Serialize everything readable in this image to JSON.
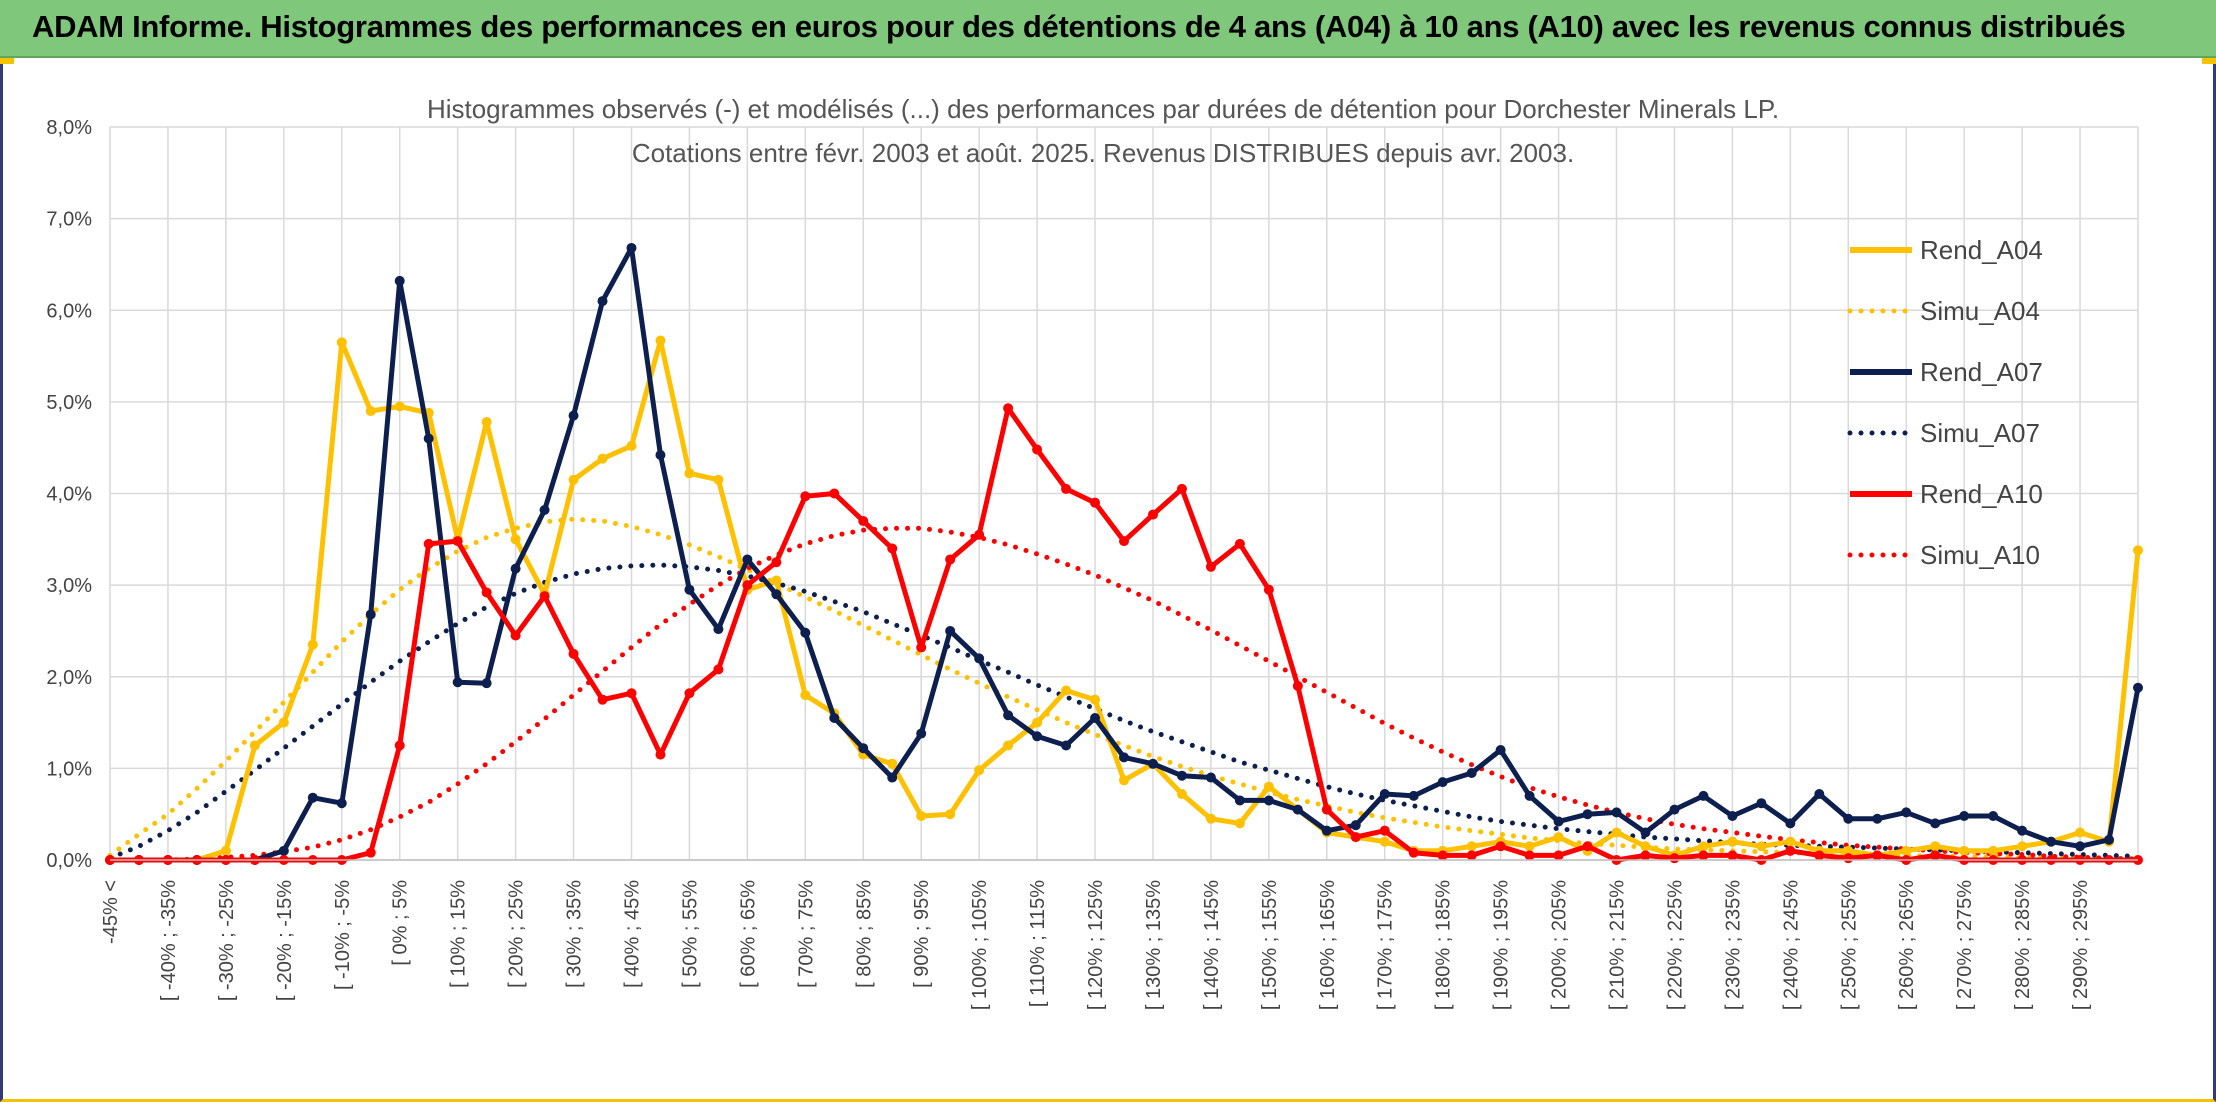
{
  "header": {
    "title": "ADAM Informe. Histogrammes des performances en euros pour des détentions de 4 ans (A04) à 10 ans (A10) avec les revenus connus distribués"
  },
  "chart_data": {
    "type": "line",
    "title": "Histogrammes observés (-) et modélisés (...) des performances par durées de détention pour Dorchester Minerals LP.",
    "subtitle": "Cotations entre févr. 2003 et août. 2025. Revenus DISTRIBUES depuis avr. 2003.",
    "xlabel": "",
    "ylabel": "",
    "ylim": [
      0,
      8
    ],
    "y_ticks": [
      "0,0%",
      "1,0%",
      "2,0%",
      "3,0%",
      "4,0%",
      "5,0%",
      "6,0%",
      "7,0%",
      "8,0%"
    ],
    "grid": true,
    "legend_position": "right",
    "x_tick_labels": [
      "-45% <",
      "[ -40% ; -35%",
      "[ -30% ; -25%",
      "[ -20% ; -15%",
      "[ -10% ; -5%",
      "[ 0% ; 5%",
      "[ 10% ; 15%",
      "[ 20% ; 25%",
      "[ 30% ; 35%",
      "[ 40% ; 45%",
      "[ 50% ; 55%",
      "[ 60% ; 65%",
      "[ 70% ; 75%",
      "[ 80% ; 85%",
      "[ 90% ; 95%",
      "[ 100% ; 105%",
      "[ 110% ; 115%",
      "[ 120% ; 125%",
      "[ 130% ; 135%",
      "[ 140% ; 145%",
      "[ 150% ; 155%",
      "[ 160% ; 165%",
      "[ 170% ; 175%",
      "[ 180% ; 185%",
      "[ 190% ; 195%",
      "[ 200% ; 205%",
      "[ 210% ; 215%",
      "[ 220% ; 225%",
      "[ 230% ; 235%",
      "[ 240% ; 245%",
      "[ 250% ; 255%",
      "[ 260% ; 265%",
      "[ 270% ; 275%",
      "[ 280% ; 285%",
      "[ 290% ; 295%"
    ],
    "series": [
      {
        "name": "Rend_A04",
        "style": "solid",
        "color": "#ffc000",
        "values": [
          0,
          0,
          0,
          0,
          0.1,
          1.25,
          1.5,
          2.35,
          5.65,
          4.9,
          4.95,
          4.88,
          3.5,
          4.78,
          3.5,
          2.9,
          4.15,
          4.38,
          4.52,
          5.67,
          4.22,
          4.15,
          2.95,
          3.05,
          1.8,
          1.6,
          1.15,
          1.05,
          0.48,
          0.5,
          0.98,
          1.25,
          1.5,
          1.85,
          1.75,
          0.87,
          1.05,
          0.72,
          0.45,
          0.4,
          0.8,
          0.55,
          0.3,
          0.25,
          0.2,
          0.1,
          0.1,
          0.15,
          0.2,
          0.15,
          0.25,
          0.1,
          0.3,
          0.15,
          0.05,
          0.15,
          0.2,
          0.15,
          0.2,
          0.1,
          0.1,
          0.05,
          0.1,
          0.15,
          0.1,
          0.1,
          0.15,
          0.2,
          0.3,
          0.2,
          3.38
        ]
      },
      {
        "name": "Simu_A04",
        "style": "dotted",
        "color": "#ffc000",
        "values": [
          0.05,
          0.28,
          0.5,
          0.78,
          1.08,
          1.4,
          1.72,
          2.05,
          2.38,
          2.68,
          2.95,
          3.18,
          3.37,
          3.52,
          3.62,
          3.69,
          3.72,
          3.7,
          3.64,
          3.55,
          3.44,
          3.31,
          3.17,
          3.02,
          2.87,
          2.72,
          2.56,
          2.4,
          2.24,
          2.08,
          1.93,
          1.78,
          1.64,
          1.5,
          1.37,
          1.25,
          1.13,
          1.02,
          0.92,
          0.83,
          0.74,
          0.66,
          0.59,
          0.52,
          0.46,
          0.41,
          0.36,
          0.32,
          0.28,
          0.24,
          0.21,
          0.18,
          0.16,
          0.14,
          0.12,
          0.11,
          0.1,
          0.09,
          0.08,
          0.07,
          0.06,
          0.05,
          0.05,
          0.04,
          0.04,
          0.03,
          0.03,
          0.03,
          0.03,
          0.02,
          0.02
        ]
      },
      {
        "name": "Rend_A07",
        "style": "solid",
        "color": "#0d1f4e",
        "values": [
          0,
          0,
          0,
          0,
          0,
          0,
          0.1,
          0.68,
          0.62,
          2.68,
          6.32,
          4.6,
          1.94,
          1.93,
          3.18,
          3.82,
          4.85,
          6.1,
          6.68,
          4.42,
          2.95,
          2.52,
          3.28,
          2.9,
          2.48,
          1.55,
          1.22,
          0.9,
          1.38,
          2.5,
          2.2,
          1.58,
          1.35,
          1.25,
          1.55,
          1.12,
          1.05,
          0.92,
          0.9,
          0.65,
          0.65,
          0.55,
          0.32,
          0.38,
          0.72,
          0.7,
          0.85,
          0.95,
          1.2,
          0.7,
          0.42,
          0.5,
          0.52,
          0.3,
          0.55,
          0.7,
          0.48,
          0.62,
          0.4,
          0.72,
          0.45,
          0.45,
          0.52,
          0.4,
          0.48,
          0.48,
          0.32,
          0.2,
          0.15,
          0.22,
          1.88
        ]
      },
      {
        "name": "Simu_A07",
        "style": "dotted",
        "color": "#0d1f4e",
        "values": [
          0.02,
          0.15,
          0.32,
          0.52,
          0.75,
          0.98,
          1.22,
          1.46,
          1.7,
          1.94,
          2.17,
          2.38,
          2.58,
          2.76,
          2.91,
          3.03,
          3.12,
          3.18,
          3.21,
          3.22,
          3.2,
          3.16,
          3.1,
          3.02,
          2.93,
          2.82,
          2.71,
          2.58,
          2.45,
          2.32,
          2.18,
          2.05,
          1.91,
          1.78,
          1.65,
          1.52,
          1.4,
          1.29,
          1.18,
          1.07,
          0.98,
          0.89,
          0.8,
          0.72,
          0.65,
          0.59,
          0.53,
          0.47,
          0.42,
          0.38,
          0.34,
          0.31,
          0.28,
          0.25,
          0.23,
          0.21,
          0.19,
          0.17,
          0.16,
          0.15,
          0.14,
          0.13,
          0.12,
          0.11,
          0.1,
          0.09,
          0.08,
          0.07,
          0.06,
          0.05,
          0.04
        ]
      },
      {
        "name": "Rend_A10",
        "style": "solid",
        "color": "#ff0000",
        "values": [
          0,
          0,
          0,
          0,
          0,
          0,
          0,
          0,
          0,
          0.08,
          1.25,
          3.45,
          3.48,
          2.92,
          2.45,
          2.88,
          2.25,
          1.75,
          1.82,
          1.15,
          1.82,
          2.08,
          3.0,
          3.25,
          3.97,
          4.0,
          3.7,
          3.4,
          2.32,
          3.28,
          3.55,
          4.93,
          4.48,
          4.05,
          3.9,
          3.48,
          3.77,
          4.05,
          3.2,
          3.45,
          2.95,
          1.9,
          0.55,
          0.25,
          0.32,
          0.08,
          0.05,
          0.05,
          0.15,
          0.05,
          0.05,
          0.15,
          0.0,
          0.05,
          0.02,
          0.05,
          0.05,
          0.0,
          0.1,
          0.05,
          0.02,
          0.05,
          0.0,
          0.05,
          0.0,
          0.0,
          0.0,
          0.0,
          0.0,
          0.0,
          0.0
        ]
      },
      {
        "name": "Simu_A10",
        "style": "dotted",
        "color": "#ff0000",
        "values": [
          0.0,
          0.0,
          0.0,
          0.01,
          0.03,
          0.05,
          0.09,
          0.14,
          0.22,
          0.33,
          0.47,
          0.63,
          0.83,
          1.05,
          1.29,
          1.54,
          1.8,
          2.06,
          2.32,
          2.57,
          2.79,
          3.0,
          3.18,
          3.33,
          3.45,
          3.54,
          3.6,
          3.62,
          3.62,
          3.58,
          3.52,
          3.44,
          3.34,
          3.23,
          3.11,
          2.97,
          2.83,
          2.67,
          2.51,
          2.34,
          2.17,
          2.0,
          1.83,
          1.66,
          1.49,
          1.33,
          1.18,
          1.04,
          0.91,
          0.79,
          0.69,
          0.6,
          0.52,
          0.45,
          0.39,
          0.34,
          0.3,
          0.26,
          0.22,
          0.19,
          0.16,
          0.14,
          0.12,
          0.1,
          0.08,
          0.07,
          0.06,
          0.04,
          0.03,
          0.02,
          0.01
        ]
      }
    ]
  }
}
